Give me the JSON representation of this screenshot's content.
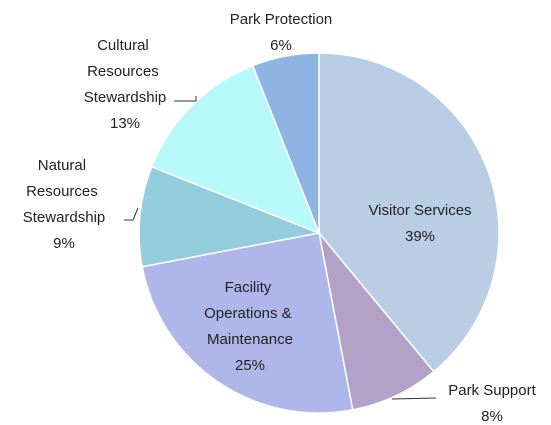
{
  "chart_data": {
    "type": "pie",
    "categories": [
      "Visitor Services",
      "Park Support",
      "Facility Operations & Maintenance",
      "Natural Resources Stewardship",
      "Cultural Resources Stewardship",
      "Park Protection"
    ],
    "values": [
      39,
      8,
      25,
      9,
      13,
      6
    ],
    "value_labels": [
      "39%",
      "8%",
      "25%",
      "9%",
      "13%",
      "6%"
    ],
    "colors": [
      "#b9cde5",
      "#b3a2c7",
      "#aeb6ea",
      "#93cddd",
      "#b7f8fb",
      "#8eb4e3"
    ]
  }
}
